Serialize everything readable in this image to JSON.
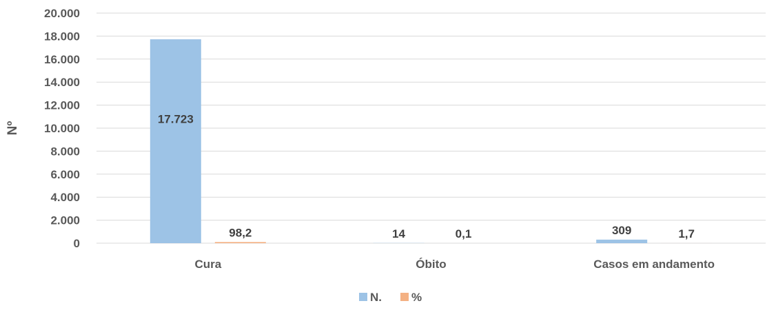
{
  "chart_data": {
    "type": "bar",
    "title": "",
    "ylabel": "Nº",
    "xlabel": "",
    "categories": [
      "Cura",
      "Óbito",
      "Casos em andamento"
    ],
    "series": [
      {
        "name": "N.",
        "values": [
          17723,
          14,
          309
        ],
        "labels": [
          "17.723",
          "14",
          "309"
        ]
      },
      {
        "name": "%",
        "values": [
          98.2,
          0.1,
          1.7
        ],
        "labels": [
          "98,2",
          "0,1",
          "1,7"
        ]
      }
    ],
    "ylim": [
      0,
      20000
    ],
    "yticks": [
      {
        "value": 0,
        "label": "0"
      },
      {
        "value": 2000,
        "label": "2.000"
      },
      {
        "value": 4000,
        "label": "4.000"
      },
      {
        "value": 6000,
        "label": "6.000"
      },
      {
        "value": 8000,
        "label": "8.000"
      },
      {
        "value": 10000,
        "label": "10.000"
      },
      {
        "value": 12000,
        "label": "12.000"
      },
      {
        "value": 14000,
        "label": "14.000"
      },
      {
        "value": 16000,
        "label": "16.000"
      },
      {
        "value": 18000,
        "label": "18.000"
      },
      {
        "value": 20000,
        "label": "20.000"
      }
    ],
    "grid": true,
    "legend_position": "bottom",
    "colors": [
      "#9dc3e6",
      "#f4b183"
    ]
  }
}
